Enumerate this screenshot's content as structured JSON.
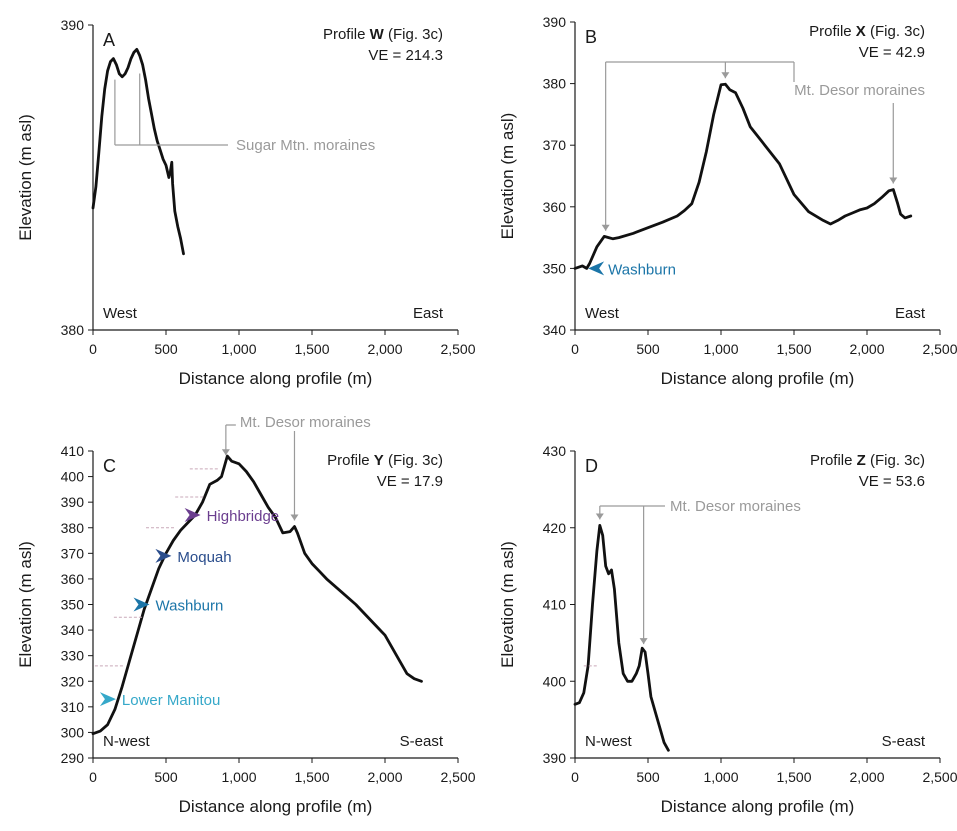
{
  "chart_data": [
    {
      "type": "line",
      "panel": "A",
      "profile": "Profile",
      "profile_id": "W",
      "fig_ref": "(Fig. 3c)",
      "ve": "VE = 214.3",
      "xlabel": "Distance along profile (m)",
      "ylabel": "Elevation (m asl)",
      "xlim": [
        0,
        2500
      ],
      "ylim": [
        380,
        390
      ],
      "xticks": [
        "0",
        "500",
        "1,000",
        "1,500",
        "2,000",
        "2,500"
      ],
      "yticks": [
        "380",
        "390"
      ],
      "left_label": "West",
      "right_label": "East",
      "series": [
        {
          "x": [
            0,
            20,
            40,
            60,
            80,
            100,
            120,
            140,
            160,
            180,
            200,
            220,
            240,
            260,
            280,
            300,
            320,
            340,
            360,
            380,
            400,
            420,
            440,
            460,
            480,
            500,
            520,
            530,
            540,
            545,
            560,
            580,
            600,
            620
          ],
          "y": [
            384.0,
            384.7,
            385.8,
            387.0,
            387.9,
            388.5,
            388.8,
            388.9,
            388.7,
            388.4,
            388.3,
            388.4,
            388.6,
            388.9,
            389.1,
            389.2,
            389.0,
            388.7,
            388.2,
            387.6,
            387.1,
            386.6,
            386.2,
            385.9,
            385.6,
            385.4,
            385.0,
            385.2,
            385.5,
            384.8,
            383.9,
            383.4,
            383.0,
            382.5
          ]
        }
      ],
      "annotations": [
        {
          "text": "Sugar Mtn. moraines",
          "x": [
            150,
            320
          ]
        }
      ]
    },
    {
      "type": "line",
      "panel": "B",
      "profile": "Profile",
      "profile_id": "X",
      "fig_ref": "(Fig. 3c)",
      "ve": "VE = 42.9",
      "xlabel": "Distance along profile (m)",
      "ylabel": "Elevation (m asl)",
      "xlim": [
        0,
        2500
      ],
      "ylim": [
        340,
        390
      ],
      "xticks": [
        "0",
        "500",
        "1,000",
        "1,500",
        "2,000",
        "2,500"
      ],
      "yticks": [
        "340",
        "350",
        "360",
        "370",
        "380",
        "390"
      ],
      "left_label": "West",
      "right_label": "East",
      "series": [
        {
          "x": [
            0,
            50,
            80,
            100,
            150,
            200,
            230,
            260,
            300,
            400,
            500,
            600,
            700,
            750,
            800,
            850,
            900,
            950,
            1000,
            1030,
            1060,
            1100,
            1150,
            1200,
            1300,
            1400,
            1500,
            1600,
            1700,
            1750,
            1800,
            1850,
            1900,
            1950,
            2000,
            2050,
            2100,
            2150,
            2180,
            2210,
            2230,
            2260,
            2300
          ],
          "y": [
            350,
            350.4,
            350,
            350.8,
            353.5,
            355.2,
            355.0,
            354.8,
            355.0,
            355.7,
            356.6,
            357.5,
            358.5,
            359.4,
            360.5,
            364.0,
            369.0,
            375.0,
            379.8,
            379.9,
            379.0,
            378.5,
            376.0,
            373.0,
            370.0,
            367.0,
            362.0,
            359.2,
            357.8,
            357.2,
            357.8,
            358.5,
            359.0,
            359.5,
            359.8,
            360.5,
            361.5,
            362.6,
            362.8,
            360.5,
            358.8,
            358.2,
            358.5
          ]
        }
      ],
      "annotations": [
        {
          "text": "Mt. Desor moraines",
          "x": [
            210,
            1030,
            2180
          ]
        }
      ],
      "terraces": [
        {
          "name": "Washburn",
          "y": 350,
          "color": "#1b75a8"
        }
      ]
    },
    {
      "type": "line",
      "panel": "C",
      "profile": "Profile",
      "profile_id": "Y",
      "fig_ref": "(Fig. 3c)",
      "ve": "VE = 17.9",
      "xlabel": "Distance along profile (m)",
      "ylabel": "Elevation (m asl)",
      "xlim": [
        0,
        2500
      ],
      "ylim": [
        290,
        410
      ],
      "xticks": [
        "0",
        "500",
        "1,000",
        "1,500",
        "2,000",
        "2,500"
      ],
      "yticks": [
        "290",
        "300",
        "310",
        "320",
        "330",
        "340",
        "350",
        "360",
        "370",
        "380",
        "390",
        "400",
        "410"
      ],
      "left_label": "N-west",
      "right_label": "S-east",
      "series": [
        {
          "x": [
            0,
            50,
            100,
            150,
            200,
            250,
            300,
            350,
            400,
            450,
            500,
            550,
            600,
            650,
            700,
            750,
            800,
            850,
            880,
            900,
            920,
            950,
            1000,
            1050,
            1100,
            1150,
            1200,
            1250,
            1300,
            1350,
            1380,
            1400,
            1450,
            1500,
            1550,
            1600,
            1700,
            1800,
            1900,
            2000,
            2100,
            2150,
            2200,
            2250
          ],
          "y": [
            299.5,
            300.5,
            303,
            309,
            318,
            328,
            338,
            348,
            356,
            364,
            370,
            375,
            379,
            382,
            385,
            390,
            397,
            398.5,
            400,
            404,
            408,
            406,
            405,
            402,
            398,
            393,
            388,
            384,
            378,
            378.5,
            380.5,
            378,
            370,
            366,
            363,
            360,
            355,
            350,
            344,
            338,
            328,
            323,
            321,
            320
          ]
        }
      ],
      "annotations": [
        {
          "text": "Mt. Desor moraines",
          "x": [
            910,
            1380
          ]
        }
      ],
      "terraces": [
        {
          "name": "Highbridge",
          "y": 385,
          "color": "#6b3e8f"
        },
        {
          "name": "Moquah",
          "y": 369,
          "color": "#2a4d8c"
        },
        {
          "name": "Washburn",
          "y": 350,
          "color": "#1b75a8"
        },
        {
          "name": "Lower Manitou",
          "y": 313,
          "color": "#35a8c9"
        }
      ]
    },
    {
      "type": "line",
      "panel": "D",
      "profile": "Profile",
      "profile_id": "Z",
      "fig_ref": "(Fig. 3c)",
      "ve": "VE = 53.6",
      "xlabel": "Distance along profile (m)",
      "ylabel": "Elevation (m asl)",
      "xlim": [
        0,
        2500
      ],
      "ylim": [
        390,
        430
      ],
      "xticks": [
        "0",
        "500",
        "1,000",
        "1,500",
        "2,000",
        "2,500"
      ],
      "yticks": [
        "390",
        "400",
        "410",
        "420",
        "430"
      ],
      "left_label": "N-west",
      "right_label": "S-east",
      "series": [
        {
          "x": [
            0,
            30,
            60,
            90,
            120,
            150,
            170,
            190,
            210,
            230,
            250,
            270,
            300,
            330,
            360,
            390,
            420,
            440,
            460,
            480,
            500,
            520,
            550,
            580,
            610,
            640
          ],
          "y": [
            397,
            397.2,
            398.5,
            402,
            410,
            417,
            420.3,
            419,
            415,
            414,
            414.5,
            412,
            405,
            401,
            400,
            400,
            401,
            402,
            404.3,
            403.8,
            401,
            398,
            396,
            394,
            392,
            391
          ]
        }
      ],
      "annotations": [
        {
          "text": "Mt. Desor moraines",
          "x": [
            170,
            470
          ]
        }
      ]
    }
  ]
}
